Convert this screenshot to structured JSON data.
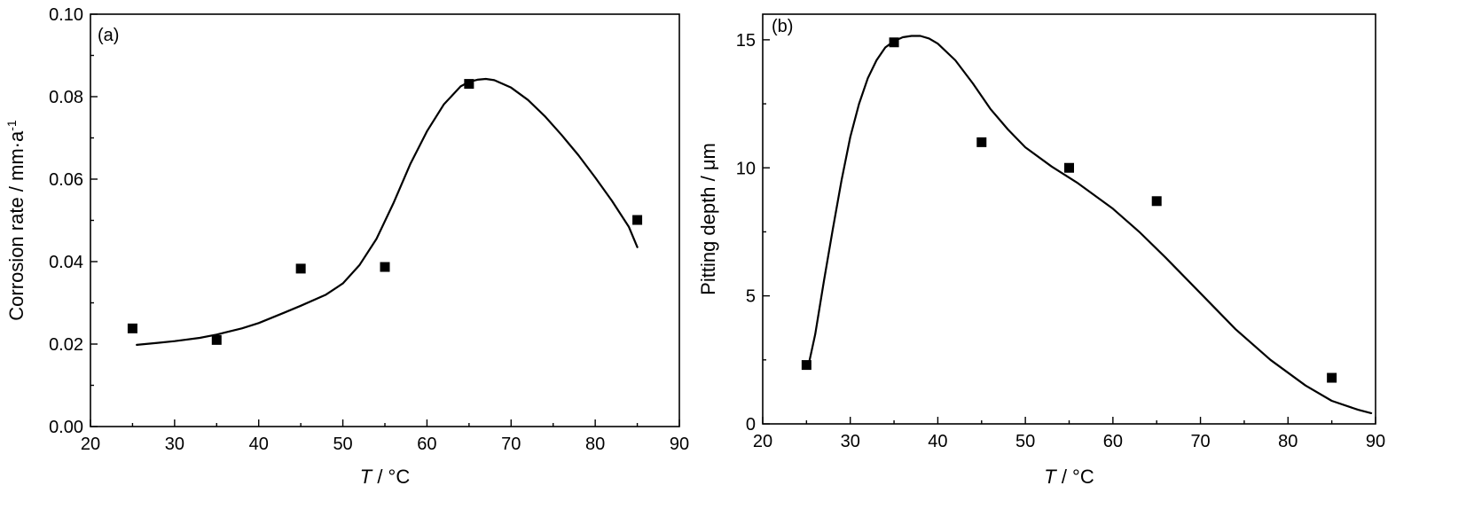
{
  "chart_data": [
    {
      "type": "scatter",
      "panel_label": "(a)",
      "xlabel_var": "T",
      "xlabel_rest": " / °C",
      "ylabel": "Corrosion rate / mm·a",
      "ylabel_sup": "-1",
      "xlim": [
        20,
        90
      ],
      "ylim": [
        0,
        0.1
      ],
      "xticks": [
        20,
        30,
        40,
        50,
        60,
        70,
        80,
        90
      ],
      "yticks": [
        0.0,
        0.02,
        0.04,
        0.06,
        0.08,
        0.1
      ],
      "ytick_labels": [
        "0.00",
        "0.02",
        "0.04",
        "0.06",
        "0.08",
        "0.10"
      ],
      "grid": false,
      "series": [
        {
          "kind": "points",
          "x": [
            25,
            35,
            45,
            55,
            65,
            85
          ],
          "y": [
            0.0238,
            0.021,
            0.0383,
            0.0387,
            0.0831,
            0.0501
          ]
        },
        {
          "kind": "fit",
          "x": [
            25.5,
            28,
            30,
            33,
            35,
            38,
            40,
            43,
            45,
            48,
            50,
            52,
            54,
            56,
            58,
            60,
            62,
            64,
            65,
            66,
            67,
            68,
            70,
            72,
            74,
            76,
            78,
            80,
            82,
            84,
            85
          ],
          "y": [
            0.0198,
            0.0203,
            0.0207,
            0.0215,
            0.0223,
            0.0238,
            0.0251,
            0.0276,
            0.0293,
            0.032,
            0.0347,
            0.0392,
            0.0455,
            0.0541,
            0.0636,
            0.0716,
            0.0781,
            0.0825,
            0.0836,
            0.0841,
            0.0843,
            0.084,
            0.0822,
            0.0792,
            0.0753,
            0.0707,
            0.0658,
            0.0604,
            0.0547,
            0.0484,
            0.0435
          ]
        }
      ]
    },
    {
      "type": "scatter",
      "panel_label": "(b)",
      "xlabel_var": "T",
      "xlabel_rest": " / °C",
      "ylabel": "Pitting depth / μm",
      "xlim": [
        20,
        90
      ],
      "ylim": [
        0,
        16
      ],
      "xticks": [
        20,
        30,
        40,
        50,
        60,
        70,
        80,
        90
      ],
      "yticks": [
        0,
        5,
        10,
        15
      ],
      "ytick_labels": [
        "0",
        "5",
        "10",
        "15"
      ],
      "grid": false,
      "series": [
        {
          "kind": "points",
          "x": [
            25,
            35,
            45,
            55,
            65,
            85
          ],
          "y": [
            2.3,
            14.9,
            11.0,
            10.0,
            8.7,
            1.8
          ]
        },
        {
          "kind": "fit",
          "x": [
            25.3,
            26,
            27,
            28,
            29,
            30,
            31,
            32,
            33,
            34,
            35,
            36,
            37,
            38,
            39,
            40,
            42,
            44,
            46,
            48,
            50,
            53,
            56,
            60,
            63,
            66,
            70,
            74,
            78,
            82,
            85,
            88,
            89.5
          ],
          "y": [
            2.4,
            3.5,
            5.6,
            7.6,
            9.5,
            11.2,
            12.5,
            13.5,
            14.2,
            14.7,
            14.95,
            15.1,
            15.15,
            15.15,
            15.05,
            14.85,
            14.2,
            13.3,
            12.3,
            11.5,
            10.8,
            10.05,
            9.4,
            8.4,
            7.5,
            6.5,
            5.1,
            3.7,
            2.5,
            1.5,
            0.9,
            0.55,
            0.42
          ]
        }
      ]
    }
  ]
}
